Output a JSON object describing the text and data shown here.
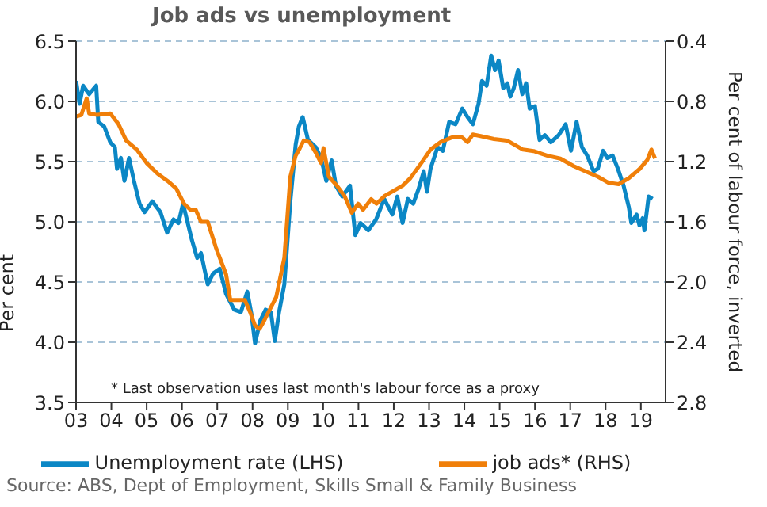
{
  "chart_data": {
    "type": "line",
    "title": "Job ads vs unemployment",
    "ylabel": "Per cent",
    "y2label": "Per cent of labour force, inverted",
    "annotations": [
      "* Last observation uses last month's labour force as a proxy",
      "Source: ABS, Dept of Employment, Skills Small & Family Business"
    ],
    "xlim": [
      2003,
      2019.7
    ],
    "xticks": [
      {
        "value": 2003,
        "label": "03"
      },
      {
        "value": 2004,
        "label": "04"
      },
      {
        "value": 2005,
        "label": "05"
      },
      {
        "value": 2006,
        "label": "06"
      },
      {
        "value": 2007,
        "label": "07"
      },
      {
        "value": 2008,
        "label": "08"
      },
      {
        "value": 2009,
        "label": "09"
      },
      {
        "value": 2010,
        "label": "10"
      },
      {
        "value": 2011,
        "label": "11"
      },
      {
        "value": 2012,
        "label": "12"
      },
      {
        "value": 2013,
        "label": "13"
      },
      {
        "value": 2014,
        "label": "14"
      },
      {
        "value": 2015,
        "label": "15"
      },
      {
        "value": 2016,
        "label": "16"
      },
      {
        "value": 2017,
        "label": "17"
      },
      {
        "value": 2018,
        "label": "18"
      },
      {
        "value": 2019,
        "label": "19"
      }
    ],
    "ylim": [
      3.5,
      6.5
    ],
    "yticks": [
      3.5,
      {
        "value": 4,
        "label": "4.0"
      },
      4.5,
      {
        "value": 5,
        "label": "5.0"
      },
      5.5,
      {
        "value": 6,
        "label": "6.0"
      },
      6.5
    ],
    "y2lim": [
      2.8,
      0.4
    ],
    "y2ticks": [
      0.4,
      0.8,
      1.2,
      1.6,
      {
        "value": 2,
        "label": "2.0"
      },
      2.4,
      2.8
    ],
    "grid": "y",
    "legend": "bottom",
    "marker": "none",
    "line_style": "solid",
    "series": [
      {
        "name": "Unemployment rate (LHS)",
        "color": "#0b87c5",
        "x": [
          2003.0,
          2003.1,
          2003.2,
          2003.37,
          2003.57,
          2003.63,
          2003.8,
          2003.97,
          2004.1,
          2004.16,
          2004.27,
          2004.37,
          2004.5,
          2004.64,
          2004.8,
          2004.94,
          2005.16,
          2005.39,
          2005.58,
          2005.76,
          2005.9,
          2006.03,
          2006.18,
          2006.28,
          2006.43,
          2006.54,
          2006.73,
          2006.88,
          2007.07,
          2007.25,
          2007.48,
          2007.67,
          2007.85,
          2007.97,
          2008.07,
          2008.22,
          2008.37,
          2008.52,
          2008.63,
          2008.75,
          2008.9,
          2009.07,
          2009.22,
          2009.31,
          2009.42,
          2009.57,
          2009.79,
          2009.94,
          2010.09,
          2010.24,
          2010.36,
          2010.54,
          2010.76,
          2010.91,
          2011.06,
          2011.28,
          2011.5,
          2011.73,
          2011.96,
          2012.1,
          2012.25,
          2012.4,
          2012.55,
          2012.7,
          2012.85,
          2012.94,
          2013.04,
          2013.24,
          2013.39,
          2013.57,
          2013.75,
          2013.94,
          2014.09,
          2014.24,
          2014.4,
          2014.5,
          2014.63,
          2014.76,
          2014.87,
          2014.97,
          2015.1,
          2015.22,
          2015.3,
          2015.4,
          2015.52,
          2015.64,
          2015.75,
          2015.85,
          2016.0,
          2016.13,
          2016.28,
          2016.45,
          2016.67,
          2016.87,
          2017.02,
          2017.18,
          2017.33,
          2017.48,
          2017.66,
          2017.78,
          2017.93,
          2018.05,
          2018.2,
          2018.35,
          2018.51,
          2018.66,
          2018.73,
          2018.88,
          2018.96,
          2019.05,
          2019.1,
          2019.22,
          2019.33
        ],
        "values": [
          6.17,
          5.98,
          6.13,
          6.06,
          6.13,
          5.83,
          5.79,
          5.66,
          5.62,
          5.44,
          5.53,
          5.34,
          5.53,
          5.34,
          5.15,
          5.08,
          5.17,
          5.08,
          4.91,
          5.02,
          4.99,
          5.15,
          4.97,
          4.85,
          4.7,
          4.74,
          4.48,
          4.57,
          4.61,
          4.4,
          4.27,
          4.25,
          4.42,
          4.23,
          3.99,
          4.18,
          4.27,
          4.25,
          4.01,
          4.25,
          4.48,
          5.17,
          5.64,
          5.79,
          5.87,
          5.68,
          5.62,
          5.53,
          5.34,
          5.51,
          5.3,
          5.21,
          5.3,
          4.89,
          4.99,
          4.93,
          5.02,
          5.19,
          5.06,
          5.21,
          4.99,
          5.19,
          5.15,
          5.27,
          5.42,
          5.25,
          5.44,
          5.62,
          5.59,
          5.83,
          5.81,
          5.94,
          5.87,
          5.81,
          5.98,
          6.17,
          6.13,
          6.38,
          6.26,
          6.34,
          6.11,
          6.15,
          6.04,
          6.11,
          6.26,
          6.06,
          6.15,
          5.94,
          5.96,
          5.68,
          5.72,
          5.66,
          5.72,
          5.81,
          5.59,
          5.83,
          5.62,
          5.55,
          5.42,
          5.44,
          5.59,
          5.53,
          5.55,
          5.44,
          5.3,
          5.12,
          4.99,
          5.06,
          4.97,
          5.03,
          4.93,
          5.21,
          5.19
        ]
      },
      {
        "name": "job ads* (RHS)",
        "color": "#f07f09",
        "axis": "y2",
        "x": [
          2003.0,
          2003.15,
          2003.3,
          2003.37,
          2003.6,
          2003.97,
          2004.2,
          2004.42,
          2004.72,
          2005.0,
          2005.31,
          2005.6,
          2005.84,
          2006.06,
          2006.24,
          2006.39,
          2006.54,
          2006.73,
          2006.96,
          2007.25,
          2007.37,
          2007.78,
          2007.93,
          2008.07,
          2008.2,
          2008.3,
          2008.45,
          2008.67,
          2008.9,
          2009.07,
          2009.22,
          2009.34,
          2009.45,
          2009.61,
          2009.79,
          2009.94,
          2010.01,
          2010.16,
          2010.39,
          2010.61,
          2010.81,
          2010.99,
          2011.13,
          2011.36,
          2011.51,
          2011.73,
          2012.25,
          2012.47,
          2012.78,
          2013.04,
          2013.33,
          2013.64,
          2013.94,
          2014.09,
          2014.24,
          2014.46,
          2014.84,
          2015.21,
          2015.66,
          2015.96,
          2016.34,
          2016.72,
          2017.1,
          2017.48,
          2017.78,
          2018.08,
          2018.37,
          2018.66,
          2018.96,
          2019.18,
          2019.3,
          2019.4
        ],
        "values": [
          0.9,
          0.89,
          0.78,
          0.88,
          0.89,
          0.88,
          0.95,
          1.06,
          1.12,
          1.21,
          1.28,
          1.33,
          1.38,
          1.48,
          1.52,
          1.52,
          1.6,
          1.6,
          1.77,
          1.95,
          2.12,
          2.12,
          2.2,
          2.29,
          2.31,
          2.27,
          2.2,
          2.1,
          1.84,
          1.3,
          1.16,
          1.11,
          1.06,
          1.07,
          1.14,
          1.21,
          1.11,
          1.3,
          1.36,
          1.43,
          1.54,
          1.48,
          1.52,
          1.45,
          1.48,
          1.43,
          1.36,
          1.31,
          1.21,
          1.12,
          1.07,
          1.04,
          1.04,
          1.07,
          1.02,
          1.03,
          1.05,
          1.06,
          1.12,
          1.13,
          1.16,
          1.18,
          1.23,
          1.27,
          1.3,
          1.34,
          1.35,
          1.31,
          1.25,
          1.19,
          1.12,
          1.18
        ]
      }
    ]
  }
}
